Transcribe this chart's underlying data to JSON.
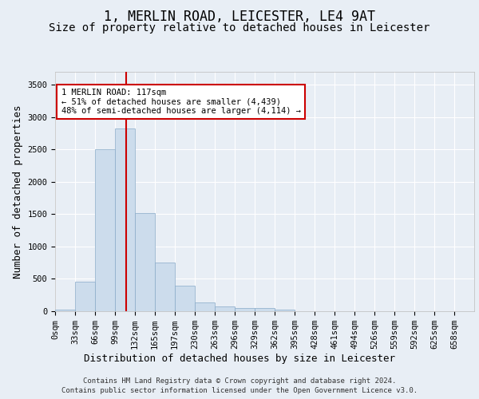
{
  "title_line1": "1, MERLIN ROAD, LEICESTER, LE4 9AT",
  "title_line2": "Size of property relative to detached houses in Leicester",
  "xlabel": "Distribution of detached houses by size in Leicester",
  "ylabel": "Number of detached properties",
  "bar_color": "#ccdcec",
  "bar_edge_color": "#88aac8",
  "vline_color": "#cc0000",
  "vline_x": 117,
  "annotation_text": "1 MERLIN ROAD: 117sqm\n← 51% of detached houses are smaller (4,439)\n48% of semi-detached houses are larger (4,114) →",
  "annotation_box_color": "#cc0000",
  "footnote_line1": "Contains HM Land Registry data © Crown copyright and database right 2024.",
  "footnote_line2": "Contains public sector information licensed under the Open Government Licence v3.0.",
  "bin_size": 33,
  "bar_values": [
    20,
    460,
    2500,
    2820,
    1520,
    750,
    390,
    140,
    75,
    55,
    55,
    20,
    5,
    0,
    0,
    0,
    0,
    0,
    0,
    0
  ],
  "x_tick_labels": [
    "0sqm",
    "33sqm",
    "66sqm",
    "99sqm",
    "132sqm",
    "165sqm",
    "197sqm",
    "230sqm",
    "263sqm",
    "296sqm",
    "329sqm",
    "362sqm",
    "395sqm",
    "428sqm",
    "461sqm",
    "494sqm",
    "526sqm",
    "559sqm",
    "592sqm",
    "625sqm",
    "658sqm"
  ],
  "ylim": [
    0,
    3700
  ],
  "yticks": [
    0,
    500,
    1000,
    1500,
    2000,
    2500,
    3000,
    3500
  ],
  "background_color": "#e8eef5",
  "grid_color": "#ffffff",
  "title_fontsize": 12,
  "subtitle_fontsize": 10,
  "ylabel_fontsize": 9,
  "xlabel_fontsize": 9,
  "tick_fontsize": 7.5,
  "annotation_fontsize": 7.5,
  "footnote_fontsize": 6.5
}
